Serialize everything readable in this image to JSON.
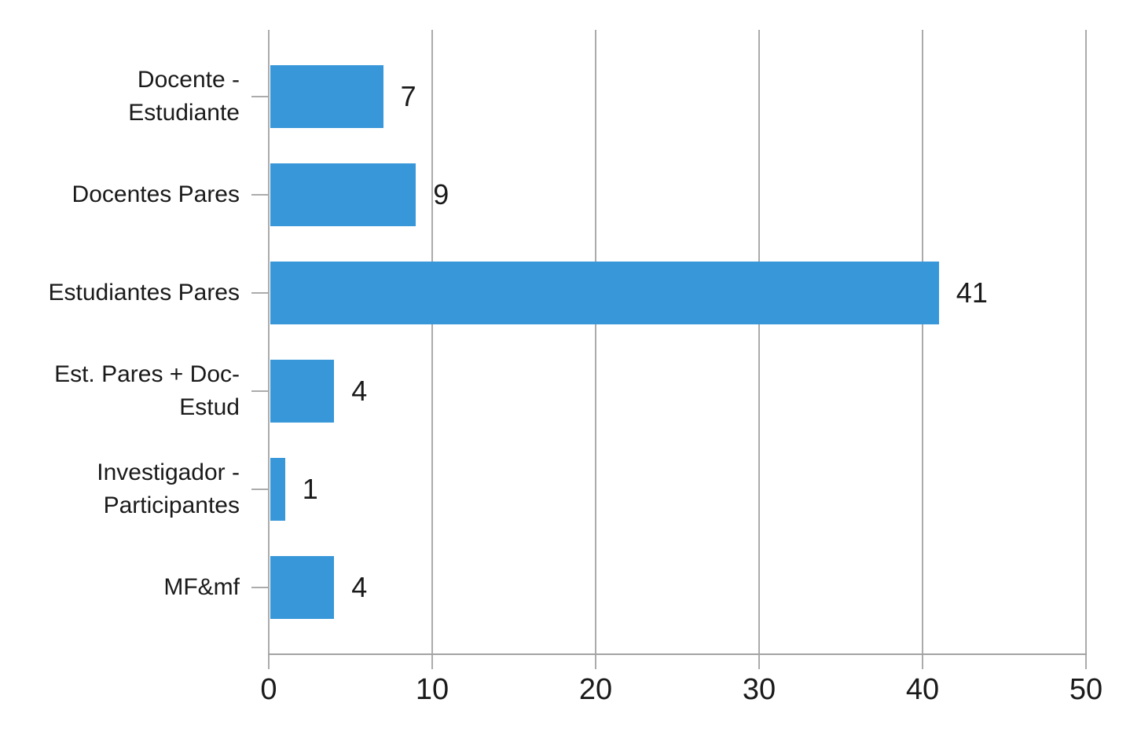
{
  "chart_data": {
    "type": "bar",
    "orientation": "horizontal",
    "title": "",
    "xlabel": "",
    "ylabel": "",
    "categories": [
      "Docente - Estudiante",
      "Docentes Pares",
      "Estudiantes Pares",
      "Est. Pares + Doc-Estud",
      "Investigador - Participantes",
      "MF&mf"
    ],
    "values": [
      7,
      9,
      41,
      4,
      1,
      4
    ],
    "data_labels_shown": true,
    "xlim": [
      0,
      50
    ],
    "x_ticks": [
      0,
      10,
      20,
      30,
      40,
      50
    ],
    "grid": "vertical",
    "legend_position": "none",
    "colors": {
      "bar": "#3897d9",
      "gridline": "#ababab",
      "axis": "#a3a3a3",
      "text": "#1a1a1a",
      "background": "#ffffff"
    }
  }
}
